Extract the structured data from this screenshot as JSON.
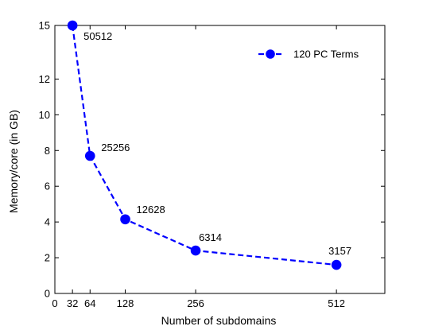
{
  "chart_data": {
    "type": "line",
    "title": "",
    "xlabel": "Number of subdomains",
    "ylabel": "Memory/core (in GB)",
    "xlim": [
      0,
      600
    ],
    "ylim": [
      0,
      15
    ],
    "x_ticks": [
      0,
      32,
      64,
      128,
      256,
      512
    ],
    "y_ticks": [
      0,
      2,
      4,
      6,
      8,
      10,
      12,
      15
    ],
    "grid": false,
    "legend_position": "top-right",
    "series": [
      {
        "name": "120 PC Terms",
        "color": "#0000ff",
        "line_style": "dashed",
        "marker": "circle",
        "x": [
          32,
          64,
          128,
          256,
          512
        ],
        "y": [
          15.0,
          7.7,
          4.15,
          2.4,
          1.6
        ],
        "point_labels": [
          "50512",
          "25256",
          "12628",
          "6314",
          "3157"
        ]
      }
    ]
  }
}
